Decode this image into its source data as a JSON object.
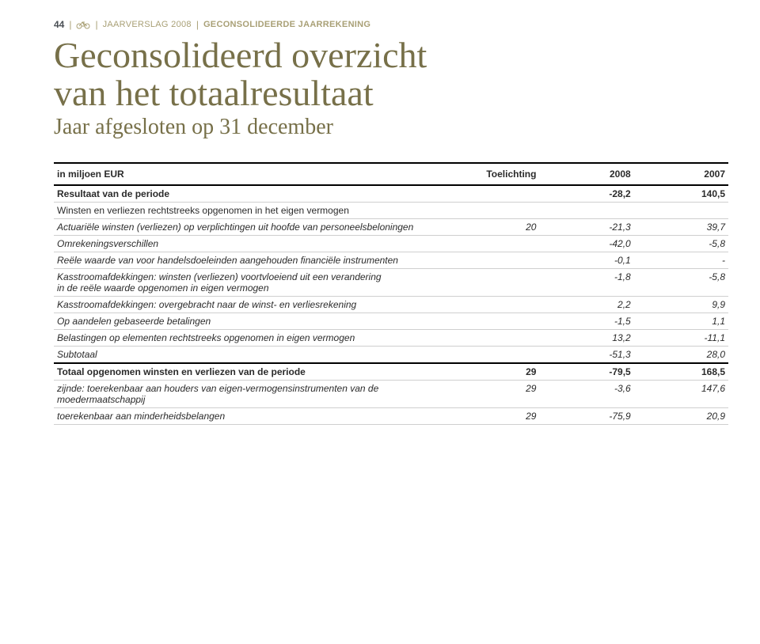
{
  "header": {
    "page_number": "44",
    "annual_label": "JAARVERSLAG 2008",
    "section_label": "GECONSOLIDEERDE JAARREKENING",
    "separator_color": "#a9a076",
    "header_text_color": "#a9a076",
    "pagenum_color": "#4a4f54",
    "bike_icon_color": "#a9a076"
  },
  "titles": {
    "main_line1": "Geconsolideerd overzicht",
    "main_line2": "van het totaalresultaat",
    "subtitle": "Jaar afgesloten op 31 december",
    "title_color": "#777049",
    "main_fontsize": 46,
    "sub_fontsize": 28
  },
  "table": {
    "columns": {
      "label": "in miljoen EUR",
      "note": "Toelichting",
      "year1": "2008",
      "year2": "2007"
    },
    "header_border_color": "#000000",
    "row_border_color": "#cfcfcf",
    "font_size": 12,
    "rows": [
      {
        "label": "Resultaat van de periode",
        "note": "",
        "y1": "-28,2",
        "y2": "140,5",
        "bold": true,
        "top_thick": false
      },
      {
        "label": "Winsten en verliezen rechtstreeks opgenomen in het eigen vermogen",
        "note": "",
        "y1": "",
        "y2": "",
        "indent": 0
      },
      {
        "label": "Actuariële winsten (verliezen) op verplichtingen uit hoofde van personeelsbeloningen",
        "note": "20",
        "y1": "-21,3",
        "y2": "39,7",
        "italic": true,
        "indent": 1
      },
      {
        "label": "Omrekeningsverschillen",
        "note": "",
        "y1": "-42,0",
        "y2": "-5,8",
        "italic": true,
        "indent": 1
      },
      {
        "label": "Reële waarde van voor handelsdoeleinden aangehouden financiële instrumenten",
        "note": "",
        "y1": "-0,1",
        "y2": "-",
        "italic": true,
        "indent": 1
      },
      {
        "label": "Kasstroomafdekkingen: winsten (verliezen) voortvloeiend uit een verandering\nin de reële waarde opgenomen in eigen vermogen",
        "note": "",
        "y1": "-1,8",
        "y2": "-5,8",
        "italic": true,
        "indent": 1
      },
      {
        "label": "Kasstroomafdekkingen: overgebracht naar de winst- en verliesrekening",
        "note": "",
        "y1": "2,2",
        "y2": "9,9",
        "italic": true,
        "indent": 1
      },
      {
        "label": "Op aandelen gebaseerde betalingen",
        "note": "",
        "y1": "-1,5",
        "y2": "1,1",
        "italic": true,
        "indent": 1
      },
      {
        "label": "Belastingen op elementen rechtstreeks opgenomen in eigen vermogen",
        "note": "",
        "y1": "13,2",
        "y2": "-11,1",
        "italic": true,
        "indent": 1
      },
      {
        "label": "Subtotaal",
        "note": "",
        "y1": "-51,3",
        "y2": "28,0",
        "italic": true,
        "indent": 1
      },
      {
        "label": "Totaal opgenomen winsten en verliezen van de periode",
        "note": "29",
        "y1": "-79,5",
        "y2": "168,5",
        "bold": true,
        "top_thick": true
      },
      {
        "label": "zijnde: toerekenbaar aan houders van eigen-vermogensinstrumenten van de moedermaatschappij",
        "note": "29",
        "y1": "-3,6",
        "y2": "147,6",
        "italic": true,
        "indent": 1
      },
      {
        "label": "toerekenbaar aan minderheidsbelangen",
        "note": "29",
        "y1": "-75,9",
        "y2": "20,9",
        "italic": true,
        "indent": 3
      }
    ]
  }
}
